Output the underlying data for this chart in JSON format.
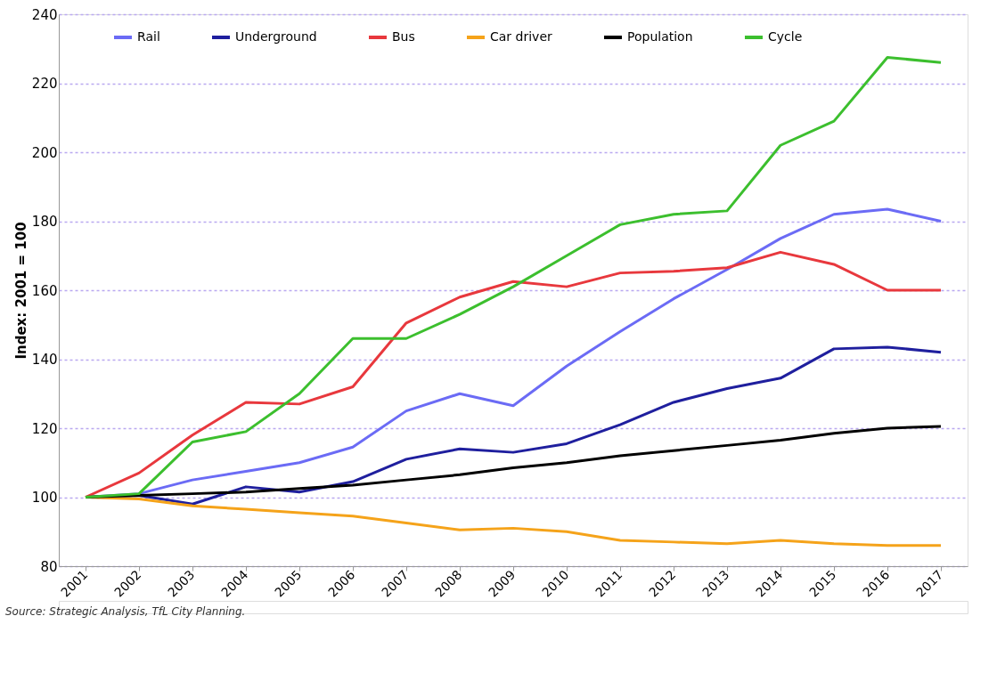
{
  "chart_data": {
    "type": "line",
    "ylabel": "Index: 2001 = 100",
    "categories": [
      "2001",
      "2002",
      "2003",
      "2004",
      "2005",
      "2006",
      "2007",
      "2008",
      "2009",
      "2010",
      "2011",
      "2012",
      "2013",
      "2014",
      "2015",
      "2016",
      "2017"
    ],
    "series": [
      {
        "name": "Rail",
        "color": "#6b6bf5",
        "values": [
          100,
          101,
          105,
          107.5,
          110,
          114.5,
          125,
          130,
          126.5,
          138,
          148,
          157.5,
          166,
          175,
          182,
          183.5,
          180
        ]
      },
      {
        "name": "Underground",
        "color": "#1f1f9e",
        "values": [
          100,
          100.5,
          98,
          103,
          101.5,
          104.5,
          111,
          114,
          113,
          115.5,
          121,
          127.5,
          131.5,
          134.5,
          143,
          143.5,
          142
        ]
      },
      {
        "name": "Bus",
        "color": "#e8383d",
        "values": [
          100,
          107,
          118,
          127.5,
          127,
          132,
          150.5,
          158,
          162.5,
          161,
          165,
          165.5,
          166.5,
          171,
          167.5,
          160,
          160
        ]
      },
      {
        "name": "Car driver",
        "color": "#f5a31a",
        "values": [
          100,
          99.5,
          97.5,
          96.5,
          95.5,
          94.5,
          92.5,
          90.5,
          91,
          90,
          87.5,
          87,
          86.5,
          87.5,
          86.5,
          86,
          86
        ]
      },
      {
        "name": "Population",
        "color": "#000000",
        "values": [
          100,
          100.5,
          101,
          101.5,
          102.5,
          103.5,
          105,
          106.5,
          108.5,
          110,
          112,
          113.5,
          115,
          116.5,
          118.5,
          120,
          120.5
        ]
      },
      {
        "name": "Cycle",
        "color": "#3cbf2e",
        "values": [
          100,
          101,
          116,
          119,
          130,
          146,
          146,
          153,
          161,
          170,
          179,
          182,
          183,
          202,
          209,
          227.5,
          226
        ]
      }
    ],
    "ylim": [
      80,
      240
    ],
    "yticks": [
      80,
      100,
      120,
      140,
      160,
      180,
      200,
      220,
      240
    ],
    "grid": "y",
    "legend": "top",
    "marker": "none",
    "line_style": "solid",
    "annotations": [
      "Source: Strategic Analysis, TfL City Planning."
    ]
  }
}
